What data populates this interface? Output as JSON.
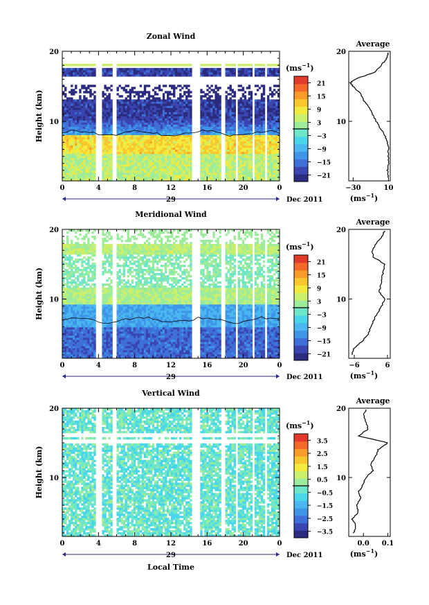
{
  "chart_data": [
    {
      "type": "heatmap",
      "title": "Zonal Wind",
      "ylabel": "Height (km)",
      "xticks": [
        "0",
        "4",
        "8",
        "12",
        "16",
        "20",
        "0"
      ],
      "yticks": [
        "20",
        "10"
      ],
      "xlim": [
        0,
        24
      ],
      "ylim": [
        1.5,
        20
      ],
      "date_label": "29",
      "date_suffix": "Dec 2011",
      "colorbar": {
        "unit": "(ms",
        "unit_exp": "−1",
        "unit_close": ")",
        "ticks": [
          "21",
          "15",
          "9",
          "3",
          "−3",
          "−9",
          "−15",
          "−21"
        ],
        "range": [
          -24,
          24
        ],
        "colors": [
          "#2b2b7f",
          "#3a45b0",
          "#3f6fd8",
          "#3f95e8",
          "#4ab7f0",
          "#49d6ea",
          "#6ee6c8",
          "#9cec9c",
          "#c9ef6c",
          "#f2ea3c",
          "#f8c72e",
          "#f99b29",
          "#f4682a",
          "#e23a2a"
        ]
      },
      "profile": {
        "title": "Average",
        "xlabel": "(ms",
        "xlabel_exp": "−1",
        "xlabel_close": ")",
        "xticks": [
          "−30",
          "10"
        ],
        "xlim": [
          -35,
          12
        ],
        "heights": [
          2.0,
          3.0,
          4.0,
          5.0,
          6.0,
          7.0,
          8.0,
          9.0,
          10.0,
          11.0,
          12.0,
          13.0,
          14.0,
          15.0,
          15.5,
          16.0,
          17.0,
          18.0,
          19.0,
          19.8
        ],
        "values": [
          9.5,
          9,
          10,
          9.5,
          10,
          9,
          6,
          1,
          -4,
          -8,
          -12,
          -18,
          -22,
          -30,
          -33,
          -28,
          -6,
          2,
          8,
          10
        ]
      }
    },
    {
      "type": "heatmap",
      "title": "Meridional Wind",
      "ylabel": "Height (km)",
      "xticks": [
        "0",
        "4",
        "8",
        "12",
        "16",
        "20",
        "0"
      ],
      "yticks": [
        "20",
        "10"
      ],
      "xlim": [
        0,
        24
      ],
      "ylim": [
        1.5,
        20
      ],
      "date_label": "29",
      "date_suffix": "Dec 2011",
      "colorbar": {
        "unit": "(ms",
        "unit_exp": "−1",
        "unit_close": ")",
        "ticks": [
          "21",
          "15",
          "9",
          "3",
          "−3",
          "−9",
          "−15",
          "−21"
        ],
        "range": [
          -24,
          24
        ],
        "colors": [
          "#2b2b7f",
          "#3a45b0",
          "#3f6fd8",
          "#3f95e8",
          "#4ab7f0",
          "#49d6ea",
          "#6ee6c8",
          "#9cec9c",
          "#c9ef6c",
          "#f2ea3c",
          "#f8c72e",
          "#f99b29",
          "#f4682a",
          "#e23a2a"
        ]
      },
      "profile": {
        "title": "Average",
        "xlabel": "(ms",
        "xlabel_exp": "−1",
        "xlabel_close": ")",
        "xticks": [
          "−6",
          "6"
        ],
        "xlim": [
          -8,
          7
        ],
        "heights": [
          2.0,
          3.0,
          4.0,
          5.0,
          6.0,
          7.0,
          8.0,
          9.0,
          10.0,
          11.0,
          12.0,
          13.0,
          14.0,
          15.0,
          16.0,
          17.0,
          18.0,
          19.0,
          19.8
        ],
        "values": [
          -7,
          -6,
          -3,
          -1,
          0,
          1,
          2.5,
          4,
          5,
          3,
          3.5,
          4,
          4.5,
          5,
          1,
          0.5,
          2,
          4,
          5
        ]
      }
    },
    {
      "type": "heatmap",
      "title": "Vertical Wind",
      "ylabel": "Height (km)",
      "xlabel": "Local Time",
      "xticks": [
        "0",
        "4",
        "8",
        "12",
        "16",
        "20",
        "0"
      ],
      "yticks": [
        "20",
        "10"
      ],
      "xlim": [
        0,
        24
      ],
      "ylim": [
        1.5,
        20
      ],
      "date_label": "29",
      "date_suffix": "Dec 2011",
      "colorbar": {
        "unit": "(ms",
        "unit_exp": "−1",
        "unit_close": ")",
        "ticks": [
          "3.5",
          "2.5",
          "1.5",
          "0.5",
          "−0.5",
          "−1.5",
          "−2.5",
          "−3.5"
        ],
        "range": [
          -4,
          4
        ],
        "colors": [
          "#2b2b7f",
          "#3a45b0",
          "#3f6fd8",
          "#3f95e8",
          "#4ab7f0",
          "#49d6ea",
          "#6ee6c8",
          "#9cec9c",
          "#c9ef6c",
          "#f2ea3c",
          "#f8c72e",
          "#f99b29",
          "#f4682a",
          "#e23a2a"
        ]
      },
      "profile": {
        "title": "Average",
        "xlabel": "(ms",
        "xlabel_exp": "−1",
        "xlabel_close": ")",
        "xticks": [
          "0.0",
          "0.1"
        ],
        "xlim": [
          -0.06,
          0.11
        ],
        "heights": [
          2.0,
          3.0,
          4.0,
          5.0,
          6.0,
          7.0,
          8.0,
          9.0,
          10.0,
          11.0,
          12.0,
          13.0,
          14.0,
          15.0,
          16.0,
          17.0,
          18.0,
          19.0,
          19.8
        ],
        "values": [
          -0.04,
          -0.03,
          -0.045,
          -0.02,
          -0.03,
          -0.01,
          -0.02,
          0.0,
          0.01,
          0.04,
          0.03,
          0.05,
          0.06,
          0.1,
          -0.02,
          0.02,
          0.01,
          0.0,
          0.01
        ]
      }
    }
  ]
}
